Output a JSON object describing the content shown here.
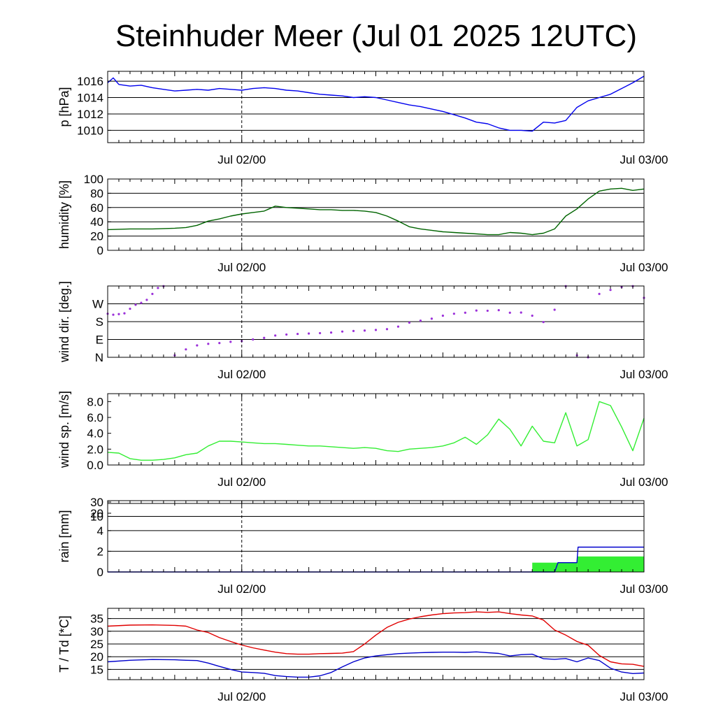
{
  "title": "Steinhuder Meer (Jul 01 2025 12UTC)",
  "x_labels": [
    "Jul 02/00",
    "Jul 03/00"
  ],
  "colors": {
    "pressure": "#0000ee",
    "humidity": "#006400",
    "wind_dir": "#9b30d9",
    "wind_speed": "#33ee33",
    "rain_sum": "#0000cc",
    "rain_bar": "#33ee33",
    "temperature": "#e00000",
    "dewpoint": "#0000cc"
  },
  "chart_data": [
    {
      "type": "line",
      "id": "pressure",
      "ylabel": "p [hPa]",
      "ylim": [
        1008.5,
        1017.2
      ],
      "yticks": [
        1010,
        1012,
        1014,
        1016
      ],
      "grid": "horizontal",
      "x_unit": "hours from Jul 01 12UTC",
      "x": [
        0,
        0.5,
        1,
        2,
        3,
        4,
        5,
        6,
        7,
        8,
        9,
        10,
        11,
        12,
        13,
        14,
        15,
        16,
        17,
        18,
        19,
        20,
        21,
        22,
        23,
        24,
        25,
        26,
        27,
        28,
        29,
        30,
        31,
        32,
        33,
        34,
        35,
        36,
        37,
        38,
        39,
        40,
        41,
        42,
        43,
        44,
        45,
        46,
        47,
        48
      ],
      "series": [
        {
          "values": [
            1015.8,
            1016.4,
            1015.6,
            1015.4,
            1015.5,
            1015.2,
            1015.0,
            1014.8,
            1014.9,
            1015.0,
            1014.9,
            1015.1,
            1015.0,
            1014.9,
            1015.1,
            1015.2,
            1015.1,
            1014.9,
            1014.8,
            1014.6,
            1014.4,
            1014.3,
            1014.2,
            1014.0,
            1014.1,
            1014.0,
            1013.7,
            1013.4,
            1013.1,
            1012.9,
            1012.6,
            1012.3,
            1011.9,
            1011.5,
            1011.0,
            1010.8,
            1010.3,
            1010.0,
            1010.0,
            1009.9,
            1011.0,
            1010.9,
            1011.2,
            1012.8,
            1013.6,
            1014.0,
            1014.4,
            1015.1,
            1015.8,
            1016.6
          ]
        }
      ]
    },
    {
      "type": "line",
      "id": "humidity",
      "ylabel": "humidity [%]",
      "ylim": [
        0,
        100
      ],
      "yticks": [
        0,
        20,
        40,
        60,
        80,
        100
      ],
      "grid": "horizontal",
      "x_unit": "hours from Jul 01 12UTC",
      "x": [
        0,
        2,
        4,
        6,
        7,
        8,
        9,
        10,
        11,
        12,
        13,
        14,
        15,
        16,
        17,
        18,
        19,
        20,
        21,
        22,
        23,
        24,
        25,
        26,
        27,
        28,
        29,
        30,
        31,
        32,
        33,
        34,
        35,
        36,
        37,
        38,
        39,
        40,
        41,
        42,
        43,
        44,
        45,
        46,
        47,
        48
      ],
      "series": [
        {
          "values": [
            29,
            30,
            30,
            31,
            32,
            35,
            41,
            44,
            48,
            51,
            53,
            55,
            62,
            60,
            59,
            58,
            57,
            57,
            56,
            56,
            55,
            53,
            48,
            41,
            33,
            30,
            28,
            26,
            25,
            24,
            23,
            22,
            22,
            25,
            24,
            22,
            24,
            30,
            48,
            58,
            72,
            83,
            86,
            87,
            84,
            86
          ]
        }
      ]
    },
    {
      "type": "scatter",
      "id": "wind_dir",
      "ylabel": "wind dir. [deg.]",
      "ylim": [
        0,
        360
      ],
      "yticks": [
        0,
        90,
        180,
        270
      ],
      "ytick_labels": [
        "N",
        "E",
        "S",
        "W"
      ],
      "grid": "horizontal",
      "x_unit": "hours from Jul 01 12UTC",
      "x": [
        0,
        0.5,
        1,
        1.5,
        2,
        2.5,
        3,
        3.5,
        4,
        4.5,
        5,
        6,
        7,
        8,
        9,
        10,
        11,
        12,
        13,
        14,
        15,
        16,
        17,
        18,
        19,
        20,
        21,
        22,
        23,
        24,
        25,
        26,
        27,
        28,
        29,
        30,
        31,
        32,
        33,
        34,
        35,
        36,
        37,
        38,
        39,
        40,
        41,
        42,
        43,
        44,
        45,
        46,
        47,
        48
      ],
      "series": [
        {
          "values": [
            220,
            215,
            218,
            222,
            245,
            265,
            275,
            290,
            320,
            350,
            375,
            10,
            40,
            60,
            68,
            72,
            78,
            82,
            90,
            98,
            110,
            115,
            118,
            120,
            122,
            125,
            130,
            133,
            135,
            138,
            142,
            155,
            175,
            185,
            195,
            210,
            220,
            225,
            236,
            235,
            238,
            225,
            226,
            210,
            178,
            240,
            375,
            10,
            0,
            320,
            340,
            355,
            365,
            300
          ]
        }
      ]
    },
    {
      "type": "line",
      "id": "wind_speed",
      "ylabel": "wind sp. [m/s]",
      "ylim": [
        0,
        9
      ],
      "yticks": [
        0,
        2,
        4,
        6,
        8
      ],
      "ytick_labels": [
        "0.0",
        "2.0",
        "4.0",
        "6.0",
        "8.0"
      ],
      "grid": "none",
      "x_unit": "hours from Jul 01 12UTC",
      "x": [
        0,
        1,
        2,
        3,
        4,
        5,
        6,
        7,
        8,
        9,
        10,
        11,
        12,
        13,
        14,
        15,
        16,
        17,
        18,
        19,
        20,
        21,
        22,
        23,
        24,
        25,
        26,
        27,
        28,
        29,
        30,
        31,
        32,
        33,
        34,
        35,
        36,
        37,
        38,
        39,
        40,
        41,
        42,
        43,
        44,
        45,
        46,
        47,
        48
      ],
      "series": [
        {
          "values": [
            1.6,
            1.5,
            0.8,
            0.6,
            0.6,
            0.7,
            0.9,
            1.3,
            1.5,
            2.4,
            3.0,
            3.0,
            2.9,
            2.8,
            2.7,
            2.7,
            2.6,
            2.5,
            2.4,
            2.4,
            2.3,
            2.2,
            2.1,
            2.2,
            2.1,
            1.8,
            1.7,
            2.0,
            2.1,
            2.2,
            2.4,
            2.8,
            3.5,
            2.6,
            3.8,
            5.8,
            4.5,
            2.4,
            4.9,
            3.0,
            2.8,
            6.6,
            2.4,
            3.2,
            8.0,
            7.5,
            4.8,
            1.8,
            5.9
          ]
        }
      ]
    },
    {
      "type": "area",
      "id": "rain",
      "ylabel": "rain [mm]",
      "scale": "custom",
      "ylim": [
        0,
        30
      ],
      "yticks": [
        0,
        2,
        4,
        10,
        20,
        30
      ],
      "ytick_labels": [
        "0",
        "2",
        "4",
        "10",
        "20",
        "30"
      ],
      "grid": "horizontal",
      "x_unit": "hours from Jul 01 12UTC",
      "x": [
        38,
        40,
        40.3,
        41,
        42,
        42.1,
        48
      ],
      "series": [
        {
          "values": [
            0.0,
            0.0,
            0.9,
            0.9,
            0.9,
            2.4,
            2.4
          ]
        }
      ],
      "bars": [
        {
          "x": [
            38,
            42
          ],
          "values": [
            0.9
          ]
        },
        {
          "x": [
            42,
            48
          ],
          "values": [
            1.5
          ]
        }
      ]
    },
    {
      "type": "line",
      "id": "temperature",
      "ylabel": "T / Td [*C]",
      "ylim": [
        11,
        39
      ],
      "yticks": [
        15,
        20,
        25,
        30,
        35
      ],
      "grid": "horizontal",
      "x_unit": "hours from Jul 01 12UTC",
      "x": [
        0,
        2,
        4,
        6,
        7,
        8,
        9,
        10,
        11,
        12,
        13,
        14,
        15,
        16,
        17,
        18,
        19,
        20,
        21,
        22,
        23,
        24,
        25,
        26,
        27,
        28,
        29,
        30,
        31,
        32,
        33,
        34,
        35,
        36,
        37,
        38,
        39,
        40,
        41,
        42,
        43,
        44,
        45,
        46,
        47,
        48
      ],
      "series": [
        {
          "values": [
            32.0,
            32.4,
            32.5,
            32.3,
            32.0,
            30.5,
            29.5,
            27.5,
            26.0,
            24.6,
            23.5,
            22.6,
            21.8,
            21.2,
            21.0,
            21.0,
            21.2,
            21.3,
            21.4,
            22.0,
            25.0,
            28.5,
            31.5,
            33.5,
            34.8,
            35.7,
            36.4,
            36.9,
            37.2,
            37.3,
            37.6,
            37.4,
            37.6,
            36.9,
            36.4,
            36.0,
            34.4,
            30.5,
            28.5,
            26.0,
            24.5,
            20.5,
            18.0,
            17.2,
            17.0,
            16.2
          ]
        },
        {
          "values": [
            18.0,
            18.6,
            18.9,
            18.8,
            18.6,
            18.5,
            17.5,
            16.2,
            15.0,
            14.0,
            13.8,
            13.5,
            12.6,
            12.2,
            12.0,
            12.0,
            12.5,
            13.8,
            16.0,
            18.0,
            19.5,
            20.3,
            20.8,
            21.2,
            21.4,
            21.6,
            21.7,
            21.8,
            21.8,
            21.7,
            21.9,
            21.6,
            21.3,
            20.3,
            20.8,
            21.0,
            19.2,
            19.0,
            19.3,
            18.0,
            19.5,
            18.5,
            15.5,
            14.0,
            13.4,
            13.6
          ]
        }
      ]
    }
  ]
}
